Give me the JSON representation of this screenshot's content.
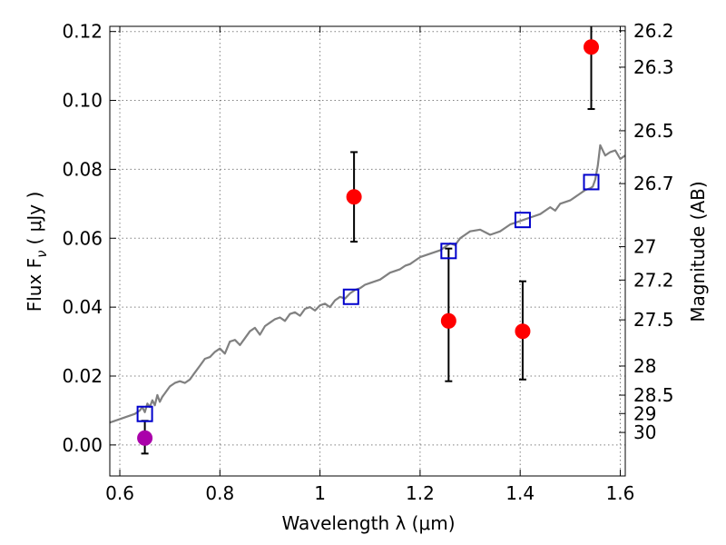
{
  "chart_data": {
    "type": "scatter",
    "xlabel": "Wavelength  λ (μm)",
    "ylabel": "Flux  F",
    "ylabel_subscript": "ν",
    "ylabel_unit": "( μJy )",
    "y2label": "Magnitude (AB)",
    "xlim": [
      0.58,
      1.61
    ],
    "ylim": [
      -0.009,
      0.1215
    ],
    "grid": true,
    "x_ticks": [
      {
        "value": 0.6,
        "label": "0.6"
      },
      {
        "value": 0.8,
        "label": "0.8"
      },
      {
        "value": 1.0,
        "label": "1"
      },
      {
        "value": 1.2,
        "label": "1.2"
      },
      {
        "value": 1.4,
        "label": "1.4"
      },
      {
        "value": 1.6,
        "label": "1.6"
      }
    ],
    "y_ticks": [
      {
        "value": 0.0,
        "label": "0.00"
      },
      {
        "value": 0.02,
        "label": "0.02"
      },
      {
        "value": 0.04,
        "label": "0.04"
      },
      {
        "value": 0.06,
        "label": "0.06"
      },
      {
        "value": 0.08,
        "label": "0.08"
      },
      {
        "value": 0.1,
        "label": "0.10"
      },
      {
        "value": 0.12,
        "label": "0.12"
      }
    ],
    "y2_ticks": [
      {
        "label": "26.2",
        "value": 26.2
      },
      {
        "label": "26.3",
        "value": 26.3
      },
      {
        "label": "26.5",
        "value": 26.5
      },
      {
        "label": "26.7",
        "value": 26.7
      },
      {
        "label": "27",
        "value": 27.0
      },
      {
        "label": "27.2",
        "value": 27.2
      },
      {
        "label": "27.5",
        "value": 27.5
      },
      {
        "label": "28",
        "value": 28.0
      },
      {
        "label": "28.5",
        "value": 28.5
      },
      {
        "label": "29",
        "value": 29.0
      },
      {
        "label": "30",
        "value": 30.0
      }
    ],
    "model_spectrum": {
      "color": "#808080",
      "x": [
        0.58,
        0.6,
        0.62,
        0.63,
        0.64,
        0.645,
        0.65,
        0.655,
        0.66,
        0.665,
        0.67,
        0.675,
        0.68,
        0.685,
        0.69,
        0.695,
        0.7,
        0.71,
        0.72,
        0.73,
        0.74,
        0.75,
        0.76,
        0.77,
        0.78,
        0.79,
        0.8,
        0.81,
        0.82,
        0.83,
        0.84,
        0.85,
        0.86,
        0.87,
        0.88,
        0.89,
        0.9,
        0.91,
        0.92,
        0.93,
        0.94,
        0.95,
        0.96,
        0.97,
        0.98,
        0.99,
        1.0,
        1.01,
        1.02,
        1.03,
        1.04,
        1.05,
        1.06,
        1.07,
        1.08,
        1.09,
        1.1,
        1.12,
        1.14,
        1.16,
        1.17,
        1.18,
        1.19,
        1.2,
        1.22,
        1.24,
        1.25,
        1.26,
        1.27,
        1.28,
        1.29,
        1.3,
        1.32,
        1.34,
        1.36,
        1.37,
        1.38,
        1.4,
        1.42,
        1.44,
        1.46,
        1.47,
        1.48,
        1.49,
        1.5,
        1.51,
        1.52,
        1.53,
        1.54,
        1.545,
        1.55,
        1.555,
        1.56,
        1.57,
        1.58,
        1.59,
        1.6,
        1.61
      ],
      "y": [
        0.0065,
        0.0075,
        0.0085,
        0.009,
        0.01,
        0.011,
        0.0095,
        0.012,
        0.011,
        0.013,
        0.0115,
        0.0145,
        0.0125,
        0.014,
        0.015,
        0.016,
        0.017,
        0.018,
        0.0185,
        0.018,
        0.019,
        0.021,
        0.023,
        0.025,
        0.0255,
        0.027,
        0.028,
        0.0265,
        0.03,
        0.0305,
        0.029,
        0.031,
        0.033,
        0.034,
        0.032,
        0.0345,
        0.0355,
        0.0365,
        0.037,
        0.036,
        0.038,
        0.0385,
        0.0375,
        0.0395,
        0.04,
        0.039,
        0.0405,
        0.041,
        0.04,
        0.042,
        0.043,
        0.0425,
        0.044,
        0.045,
        0.0455,
        0.0465,
        0.047,
        0.048,
        0.05,
        0.051,
        0.052,
        0.0525,
        0.0535,
        0.0545,
        0.0555,
        0.0565,
        0.0575,
        0.0585,
        0.058,
        0.06,
        0.061,
        0.062,
        0.0625,
        0.061,
        0.062,
        0.063,
        0.064,
        0.065,
        0.066,
        0.067,
        0.069,
        0.068,
        0.07,
        0.0705,
        0.071,
        0.072,
        0.073,
        0.074,
        0.0745,
        0.075,
        0.077,
        0.081,
        0.087,
        0.084,
        0.085,
        0.0855,
        0.083,
        0.084
      ]
    },
    "model_photometry": {
      "color": "#0000cc",
      "marker": "open-square",
      "x": [
        0.65,
        1.062,
        1.257,
        1.405,
        1.542
      ],
      "y": [
        0.009,
        0.043,
        0.0563,
        0.0653,
        0.0763
      ]
    },
    "observed": [
      {
        "x": 0.65,
        "y": 0.002,
        "err_low": 0.0045,
        "err_high": 0.005,
        "color": "#aa00aa"
      },
      {
        "x": 1.068,
        "y": 0.072,
        "err_low": 0.013,
        "err_high": 0.013,
        "color": "#ff0000"
      },
      {
        "x": 1.257,
        "y": 0.036,
        "err_low": 0.0175,
        "err_high": 0.021,
        "color": "#ff0000"
      },
      {
        "x": 1.405,
        "y": 0.033,
        "err_low": 0.014,
        "err_high": 0.0145,
        "color": "#ff0000"
      },
      {
        "x": 1.542,
        "y": 0.1155,
        "err_low": 0.018,
        "err_high": 0.008,
        "color": "#ff0000"
      }
    ]
  }
}
